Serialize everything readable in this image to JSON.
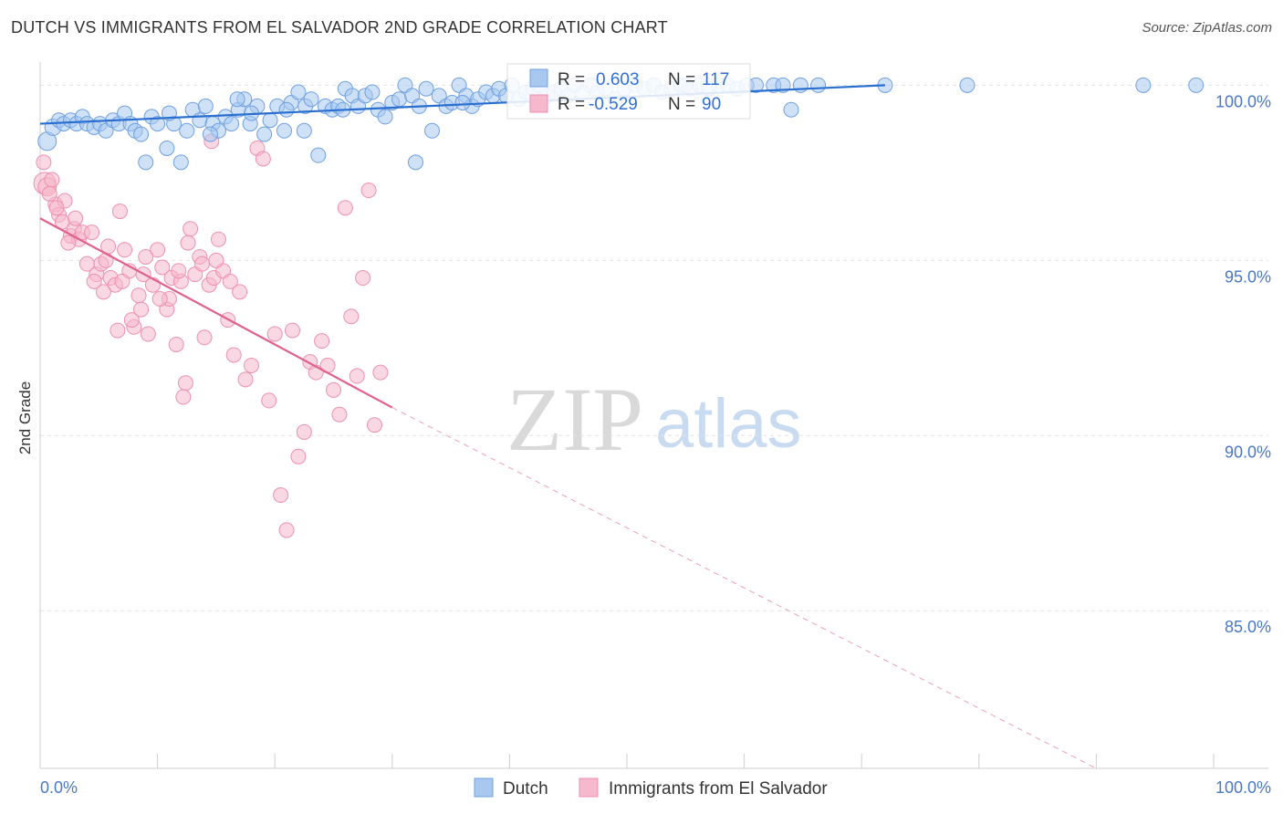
{
  "title": "DUTCH VS IMMIGRANTS FROM EL SALVADOR 2ND GRADE CORRELATION CHART",
  "source": "Source: ZipAtlas.com",
  "watermark": {
    "zip": "ZIP",
    "atlas": "atlas"
  },
  "colors": {
    "dutch_fill": "#a8c8f0",
    "dutch_stroke": "#6fa0e0",
    "dutch_line": "#2a6fd0",
    "salv_fill": "#f6b8cc",
    "salv_stroke": "#ee90ae",
    "salv_line": "#e0608e",
    "tick_text": "#4a78c8",
    "grid": "#e4e4e4"
  },
  "stats": {
    "dutch": {
      "r_label": "R =",
      "r": "0.603",
      "n_label": "N =",
      "n": "117"
    },
    "salv": {
      "r_label": "R =",
      "r": "-0.529",
      "n_label": "N =",
      "n": "90"
    }
  },
  "chart_data": {
    "type": "scatter",
    "title": "DUTCH VS IMMIGRANTS FROM EL SALVADOR 2ND GRADE CORRELATION CHART",
    "xlabel": "",
    "ylabel": "2nd Grade",
    "xlim": [
      0,
      100
    ],
    "ylim": [
      80.5,
      100.4
    ],
    "x_ticks": [
      "0.0%",
      "100.0%"
    ],
    "y_ticks": [
      {
        "value": 100,
        "label": "100.0%"
      },
      {
        "value": 95,
        "label": "95.0%"
      },
      {
        "value": 90,
        "label": "90.0%"
      },
      {
        "value": 85,
        "label": "85.0%"
      }
    ],
    "grid": true,
    "legend_position": "bottom-center",
    "series": [
      {
        "name": "Dutch",
        "r": 0.603,
        "n": 117,
        "trend": {
          "x": [
            0,
            72
          ],
          "y": [
            98.9,
            100.0
          ]
        },
        "points": [
          [
            0.6,
            98.4,
            9
          ],
          [
            1.1,
            98.8,
            8
          ],
          [
            1.6,
            99.0,
            7
          ],
          [
            2.0,
            98.9,
            7
          ],
          [
            2.6,
            99.0,
            7
          ],
          [
            3.1,
            98.9,
            7
          ],
          [
            3.6,
            99.1,
            7
          ],
          [
            4.0,
            98.9,
            7
          ],
          [
            4.6,
            98.8,
            7
          ],
          [
            5.1,
            98.9,
            7
          ],
          [
            5.6,
            98.7,
            7
          ],
          [
            6.2,
            99.0,
            7
          ],
          [
            6.7,
            98.9,
            7
          ],
          [
            7.2,
            99.2,
            7
          ],
          [
            7.7,
            98.9,
            7
          ],
          [
            8.1,
            98.7,
            7
          ],
          [
            8.6,
            98.6,
            7
          ],
          [
            9.0,
            97.8,
            7
          ],
          [
            9.5,
            99.1,
            7
          ],
          [
            10.0,
            98.9,
            7
          ],
          [
            10.8,
            98.2,
            7
          ],
          [
            11.4,
            98.9,
            7
          ],
          [
            12.0,
            97.8,
            7
          ],
          [
            12.5,
            98.7,
            7
          ],
          [
            13.0,
            99.3,
            7
          ],
          [
            13.6,
            99.0,
            7
          ],
          [
            14.1,
            99.4,
            7
          ],
          [
            14.7,
            98.9,
            7
          ],
          [
            15.2,
            98.7,
            7
          ],
          [
            15.8,
            99.1,
            7
          ],
          [
            16.3,
            98.9,
            7
          ],
          [
            16.9,
            99.3,
            7
          ],
          [
            17.4,
            99.6,
            7
          ],
          [
            17.9,
            98.9,
            7
          ],
          [
            18.5,
            99.4,
            7
          ],
          [
            19.1,
            98.6,
            7
          ],
          [
            19.6,
            99.0,
            7
          ],
          [
            20.2,
            99.4,
            7
          ],
          [
            20.8,
            98.7,
            7
          ],
          [
            21.4,
            99.5,
            7
          ],
          [
            22.0,
            99.8,
            7
          ],
          [
            22.6,
            99.4,
            7
          ],
          [
            23.1,
            99.6,
            7
          ],
          [
            23.7,
            98.0,
            7
          ],
          [
            24.3,
            99.4,
            7
          ],
          [
            24.9,
            99.3,
            7
          ],
          [
            25.4,
            99.4,
            7
          ],
          [
            26.0,
            99.9,
            7
          ],
          [
            26.6,
            99.7,
            7
          ],
          [
            27.1,
            99.4,
            7
          ],
          [
            27.7,
            99.7,
            7
          ],
          [
            28.3,
            99.8,
            7
          ],
          [
            28.8,
            99.3,
            7
          ],
          [
            29.4,
            99.1,
            7
          ],
          [
            30.0,
            99.5,
            7
          ],
          [
            30.6,
            99.6,
            7
          ],
          [
            31.1,
            100.0,
            7
          ],
          [
            31.7,
            99.7,
            7
          ],
          [
            32.3,
            99.4,
            7
          ],
          [
            32.9,
            99.9,
            7
          ],
          [
            33.4,
            98.7,
            7
          ],
          [
            34.0,
            99.7,
            7
          ],
          [
            34.6,
            99.4,
            7
          ],
          [
            35.1,
            99.5,
            7
          ],
          [
            35.7,
            100.0,
            7
          ],
          [
            36.3,
            99.7,
            7
          ],
          [
            36.8,
            99.4,
            7
          ],
          [
            37.3,
            99.6,
            7
          ],
          [
            38.0,
            99.8,
            7
          ],
          [
            38.6,
            99.7,
            7
          ],
          [
            39.1,
            99.9,
            7
          ],
          [
            39.7,
            99.7,
            7
          ],
          [
            40.2,
            100.0,
            7
          ],
          [
            40.8,
            99.6,
            7
          ],
          [
            41.4,
            99.8,
            7
          ],
          [
            42.0,
            99.9,
            7
          ],
          [
            42.6,
            100.0,
            7
          ],
          [
            43.2,
            99.7,
            7
          ],
          [
            43.8,
            99.8,
            7
          ],
          [
            44.4,
            99.9,
            7
          ],
          [
            45.0,
            99.7,
            7
          ],
          [
            46.2,
            99.8,
            7
          ],
          [
            46.9,
            100.0,
            7
          ],
          [
            47.5,
            99.8,
            7
          ],
          [
            48.2,
            99.9,
            7
          ],
          [
            49.0,
            99.6,
            7
          ],
          [
            49.8,
            99.9,
            7
          ],
          [
            50.7,
            100.0,
            7
          ],
          [
            51.5,
            99.9,
            7
          ],
          [
            52.3,
            100.0,
            7
          ],
          [
            53.0,
            99.8,
            7
          ],
          [
            53.8,
            99.9,
            7
          ],
          [
            54.6,
            100.0,
            7
          ],
          [
            55.4,
            99.9,
            7
          ],
          [
            56.2,
            100.0,
            7
          ],
          [
            57.0,
            99.9,
            7
          ],
          [
            57.8,
            100.0,
            7
          ],
          [
            58.6,
            100.0,
            7
          ],
          [
            59.4,
            99.9,
            7
          ],
          [
            60.2,
            100.0,
            7
          ],
          [
            61.0,
            100.0,
            7
          ],
          [
            62.5,
            100.0,
            7
          ],
          [
            63.3,
            100.0,
            7
          ],
          [
            64.0,
            99.3,
            7
          ],
          [
            64.8,
            100.0,
            7
          ],
          [
            66.3,
            100.0,
            7
          ],
          [
            72.0,
            100.0,
            7
          ],
          [
            79.0,
            100.0,
            7
          ],
          [
            94.0,
            100.0,
            7
          ],
          [
            98.5,
            100.0,
            7
          ],
          [
            32.0,
            97.8,
            7
          ],
          [
            25.8,
            99.3,
            7
          ],
          [
            22.5,
            98.7,
            7
          ],
          [
            18.0,
            99.2,
            7
          ],
          [
            14.5,
            98.6,
            7
          ],
          [
            11.0,
            99.2,
            7
          ],
          [
            21.0,
            99.3,
            7
          ],
          [
            36.0,
            99.5,
            7
          ],
          [
            45.5,
            100.0,
            7
          ],
          [
            55.0,
            100.0,
            7
          ],
          [
            16.8,
            99.6,
            7
          ]
        ]
      },
      {
        "name": "Immigrants from El Salvador",
        "r": -0.529,
        "n": 90,
        "trend": {
          "x": [
            0,
            30
          ],
          "y": [
            96.2,
            90.8
          ]
        },
        "trend_extended": {
          "x": [
            30,
            90
          ],
          "y": [
            90.8,
            80.5
          ]
        },
        "points": [
          [
            0.4,
            97.2,
            11
          ],
          [
            0.6,
            97.1,
            9
          ],
          [
            1.0,
            97.3,
            7
          ],
          [
            1.3,
            96.6,
            7
          ],
          [
            1.6,
            96.3,
            7
          ],
          [
            1.9,
            96.1,
            7
          ],
          [
            2.1,
            96.7,
            7
          ],
          [
            2.6,
            95.7,
            7
          ],
          [
            2.9,
            95.9,
            7
          ],
          [
            3.3,
            95.6,
            7
          ],
          [
            3.6,
            95.8,
            7
          ],
          [
            4.0,
            94.9,
            7
          ],
          [
            4.4,
            95.8,
            7
          ],
          [
            4.8,
            94.6,
            7
          ],
          [
            5.2,
            94.9,
            7
          ],
          [
            5.6,
            95.0,
            7
          ],
          [
            6.0,
            94.5,
            7
          ],
          [
            6.4,
            94.3,
            7
          ],
          [
            6.8,
            96.4,
            7
          ],
          [
            7.2,
            95.3,
            7
          ],
          [
            7.6,
            94.7,
            7
          ],
          [
            8.0,
            93.1,
            7
          ],
          [
            8.4,
            94.0,
            7
          ],
          [
            8.8,
            94.6,
            7
          ],
          [
            9.2,
            92.9,
            7
          ],
          [
            9.6,
            94.3,
            7
          ],
          [
            10.0,
            95.3,
            7
          ],
          [
            10.4,
            94.8,
            7
          ],
          [
            10.8,
            93.6,
            7
          ],
          [
            11.2,
            94.5,
            7
          ],
          [
            11.6,
            92.6,
            7
          ],
          [
            12.0,
            94.4,
            7
          ],
          [
            12.4,
            91.5,
            7
          ],
          [
            12.8,
            95.9,
            7
          ],
          [
            13.2,
            94.6,
            7
          ],
          [
            13.6,
            95.1,
            7
          ],
          [
            14.0,
            92.8,
            7
          ],
          [
            14.4,
            94.3,
            7
          ],
          [
            14.8,
            94.5,
            7
          ],
          [
            15.2,
            95.6,
            7
          ],
          [
            15.6,
            94.7,
            7
          ],
          [
            16.0,
            93.3,
            7
          ],
          [
            16.5,
            92.3,
            7
          ],
          [
            17.0,
            94.1,
            7
          ],
          [
            17.5,
            91.6,
            7
          ],
          [
            18.0,
            92.0,
            7
          ],
          [
            18.5,
            98.2,
            7
          ],
          [
            19.0,
            97.9,
            7
          ],
          [
            19.5,
            91.0,
            7
          ],
          [
            20.0,
            92.9,
            7
          ],
          [
            20.5,
            88.3,
            7
          ],
          [
            21.0,
            87.3,
            7
          ],
          [
            21.5,
            93.0,
            7
          ],
          [
            22.0,
            89.4,
            7
          ],
          [
            22.5,
            90.1,
            7
          ],
          [
            23.0,
            92.1,
            7
          ],
          [
            23.5,
            91.8,
            7
          ],
          [
            24.0,
            92.7,
            7
          ],
          [
            24.5,
            92.0,
            7
          ],
          [
            25.0,
            91.3,
            7
          ],
          [
            25.5,
            90.6,
            7
          ],
          [
            26.0,
            96.5,
            7
          ],
          [
            26.5,
            93.4,
            7
          ],
          [
            27.0,
            91.7,
            7
          ],
          [
            27.5,
            94.5,
            7
          ],
          [
            28.0,
            97.0,
            7
          ],
          [
            28.5,
            90.3,
            7
          ],
          [
            29.0,
            91.8,
            7
          ],
          [
            7.8,
            93.3,
            7
          ],
          [
            9.0,
            95.1,
            7
          ],
          [
            11.0,
            93.9,
            7
          ],
          [
            12.2,
            91.1,
            7
          ],
          [
            13.8,
            94.9,
            7
          ],
          [
            15.0,
            95.0,
            7
          ],
          [
            16.2,
            94.4,
            7
          ],
          [
            3.0,
            96.2,
            7
          ],
          [
            5.8,
            95.4,
            7
          ],
          [
            6.6,
            93.0,
            7
          ],
          [
            8.6,
            93.6,
            7
          ],
          [
            10.2,
            93.9,
            7
          ],
          [
            2.4,
            95.5,
            7
          ],
          [
            1.4,
            96.5,
            7
          ],
          [
            4.6,
            94.4,
            7
          ],
          [
            14.6,
            98.4,
            7
          ],
          [
            0.3,
            97.8,
            7
          ],
          [
            0.8,
            96.9,
            7
          ],
          [
            12.6,
            95.5,
            7
          ],
          [
            5.4,
            94.1,
            7
          ],
          [
            7.0,
            94.4,
            7
          ],
          [
            11.8,
            94.7,
            7
          ]
        ]
      }
    ]
  },
  "legend": {
    "items": [
      {
        "label": "Dutch"
      },
      {
        "label": "Immigrants from El Salvador"
      }
    ]
  }
}
